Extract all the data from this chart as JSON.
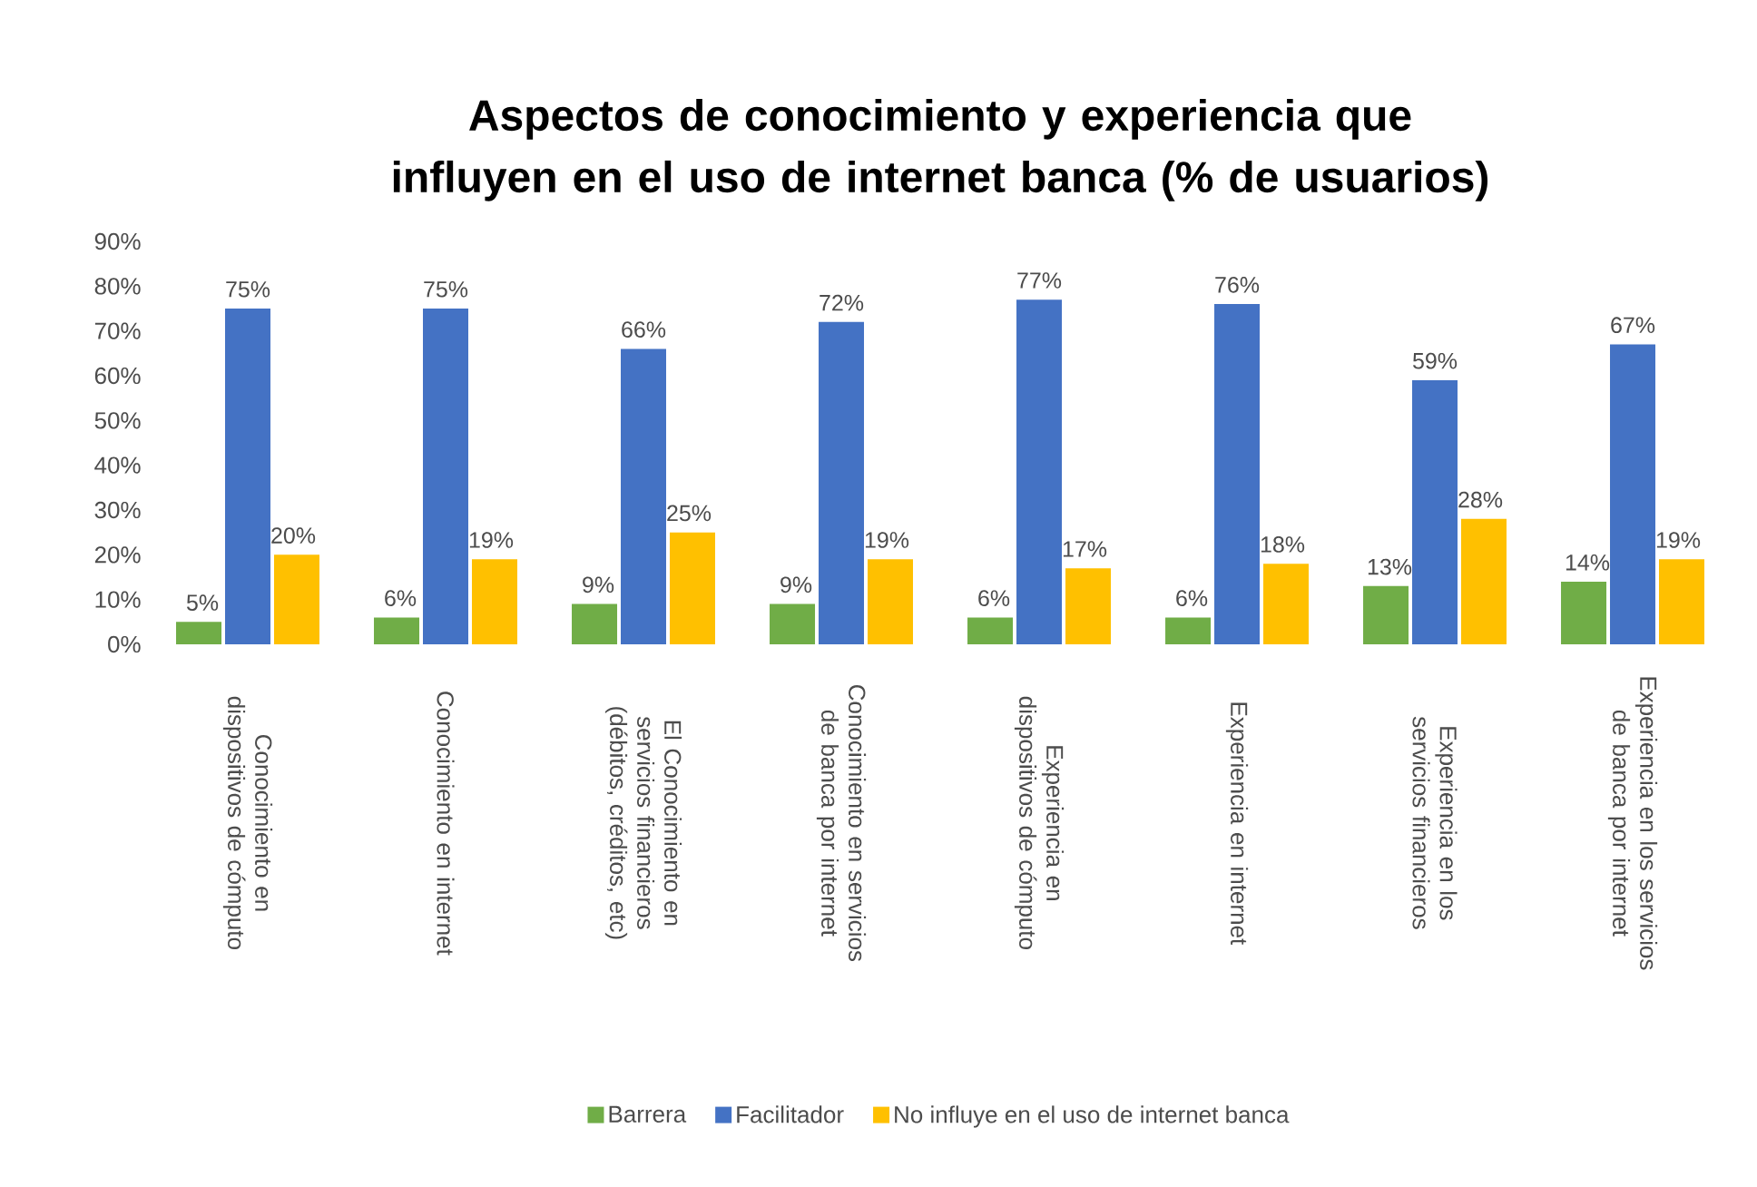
{
  "chart_data": {
    "type": "bar",
    "title": "Aspectos de conocimiento y experiencia que influyen en el uso de internet banca (% de usuarios)",
    "categories": [
      "Conocimiento en dispositivos de cómputo",
      "Conocimiento en internet",
      "El Conocimiento en servicios financieros (débitos, créditos, etc)",
      "Conocimiento en servicios de banca por internet",
      "Experiencia en dispositivos de cómputo",
      "Experiencia en internet",
      "Experiencia en los servicios financieros",
      "Experiencia en los servicios de banca por internet"
    ],
    "series": [
      {
        "name": "Barrera",
        "color": "#70ad47",
        "values": [
          5,
          6,
          9,
          9,
          6,
          6,
          13,
          14
        ],
        "value_labels": [
          "5%",
          "6%",
          "9%",
          "9%",
          "6%",
          "6%",
          "13%",
          "14%"
        ]
      },
      {
        "name": "Facilitador",
        "color": "#4472c4",
        "values": [
          75,
          75,
          66,
          72,
          77,
          76,
          59,
          67
        ],
        "value_labels": [
          "75%",
          "75%",
          "66%",
          "72%",
          "77%",
          "76%",
          "59%",
          "67%"
        ]
      },
      {
        "name": "No influye en el uso de internet banca",
        "color": "#ffc000",
        "values": [
          20,
          19,
          25,
          19,
          17,
          18,
          28,
          19
        ],
        "value_labels": [
          "20%",
          "19%",
          "25%",
          "19%",
          "17%",
          "18%",
          "28%",
          "19%"
        ]
      }
    ],
    "ylim": [
      0,
      90
    ],
    "yticks": [
      {
        "value": 0,
        "label": "0%"
      },
      {
        "value": 10,
        "label": "10%"
      },
      {
        "value": 20,
        "label": "20%"
      },
      {
        "value": 30,
        "label": "30%"
      },
      {
        "value": 40,
        "label": "40%"
      },
      {
        "value": 50,
        "label": "50%"
      },
      {
        "value": 60,
        "label": "60%"
      },
      {
        "value": 70,
        "label": "70%"
      },
      {
        "value": 80,
        "label": "80%"
      },
      {
        "value": 90,
        "label": "90%"
      }
    ],
    "legend": "bottom"
  }
}
